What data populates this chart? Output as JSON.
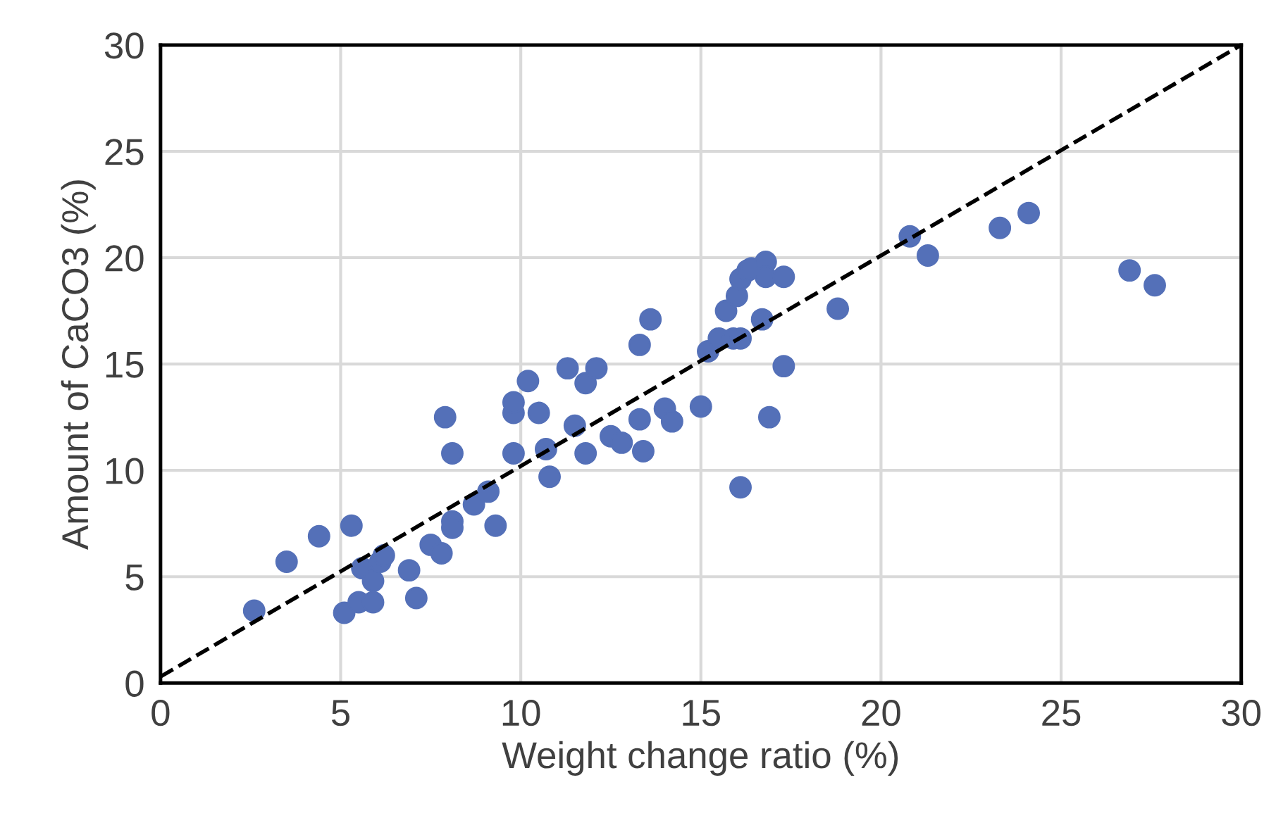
{
  "chart_data": {
    "type": "scatter",
    "xlabel": "Weight change ratio (%)",
    "ylabel": "Amount of CaCO3 (%)",
    "xlim": [
      0,
      30
    ],
    "ylim": [
      0,
      30
    ],
    "xticks": [
      0,
      5,
      10,
      15,
      20,
      25,
      30
    ],
    "yticks": [
      0,
      5,
      10,
      15,
      20,
      25,
      30
    ],
    "grid": true,
    "marker": "circle",
    "series": [
      {
        "color": "#5470b8",
        "x": [
          2.6,
          3.5,
          4.4,
          5.3,
          5.1,
          5.5,
          5.6,
          5.9,
          5.9,
          6.1,
          6.2,
          6.9,
          7.1,
          7.5,
          7.8,
          7.9,
          8.1,
          8.1,
          8.1,
          8.7,
          9.1,
          9.3,
          9.8,
          9.8,
          9.8,
          10.2,
          10.5,
          10.7,
          10.8,
          11.3,
          11.5,
          11.8,
          11.8,
          12.1,
          12.5,
          12.8,
          13.3,
          13.3,
          13.4,
          13.6,
          14.0,
          14.2,
          15.0,
          15.2,
          15.5,
          15.7,
          15.9,
          16.1,
          16.0,
          16.1,
          16.1,
          16.3,
          16.4,
          16.8,
          16.7,
          16.8,
          16.9,
          17.3,
          17.3,
          18.8,
          20.8,
          21.3,
          23.3,
          24.1,
          26.9,
          27.6
        ],
        "values": [
          3.4,
          5.7,
          6.9,
          7.4,
          3.3,
          3.8,
          5.4,
          3.8,
          4.8,
          5.7,
          6.0,
          5.3,
          4.0,
          6.5,
          6.1,
          12.5,
          7.6,
          7.3,
          10.8,
          8.4,
          9.0,
          7.4,
          10.8,
          12.7,
          13.2,
          14.2,
          12.7,
          11.0,
          9.7,
          14.8,
          12.1,
          10.8,
          14.1,
          14.8,
          11.6,
          11.3,
          15.9,
          12.4,
          10.9,
          17.1,
          12.9,
          12.3,
          13.0,
          15.6,
          16.2,
          17.5,
          16.2,
          16.2,
          18.2,
          19.0,
          9.2,
          19.4,
          19.5,
          19.8,
          17.1,
          19.1,
          12.5,
          19.1,
          14.9,
          17.6,
          21.0,
          20.1,
          21.4,
          22.1,
          19.4,
          18.7
        ]
      },
      {
        "type": "line",
        "color": "#000000",
        "line_style": "dashed",
        "marker": "none",
        "x": [
          0,
          30
        ],
        "values": [
          0.3,
          30
        ]
      }
    ]
  }
}
